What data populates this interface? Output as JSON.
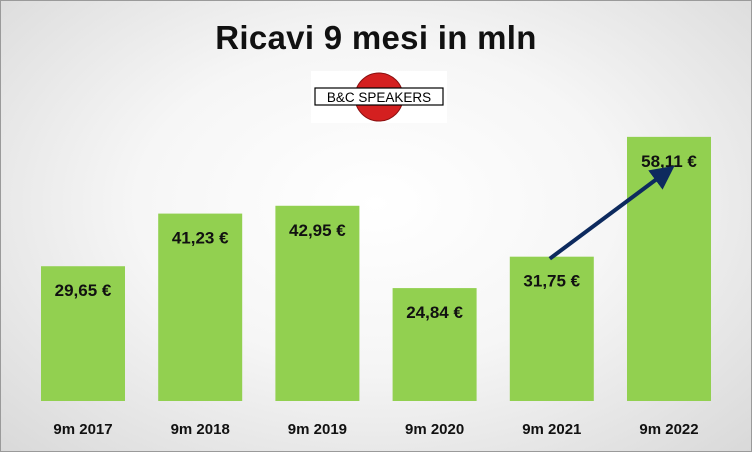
{
  "chart_data": {
    "type": "bar",
    "title": "Ricavi 9 mesi in mln",
    "categories": [
      "9m 2017",
      "9m 2018",
      "9m 2019",
      "9m 2020",
      "9m 2021",
      "9m 2022"
    ],
    "values": [
      29.65,
      41.23,
      42.95,
      24.84,
      31.75,
      58.11
    ],
    "data_labels": [
      "29,65 €",
      "41,23 €",
      "42,95 €",
      "24,84 €",
      "31,75 €",
      "58,11 €"
    ],
    "xlabel": "",
    "ylabel": "",
    "ylim": [
      0,
      66
    ],
    "grid": false,
    "legend": "none",
    "annotation": "arrow from 9m 2021 bar up to 9m 2022 label",
    "colors": {
      "bar": "#92d050",
      "arrow": "#0d2a5e",
      "text": "#111111"
    }
  },
  "logo": {
    "text": "B&C SPEAKERS",
    "colors": {
      "circle": "#d42020",
      "text": "#000000"
    }
  }
}
